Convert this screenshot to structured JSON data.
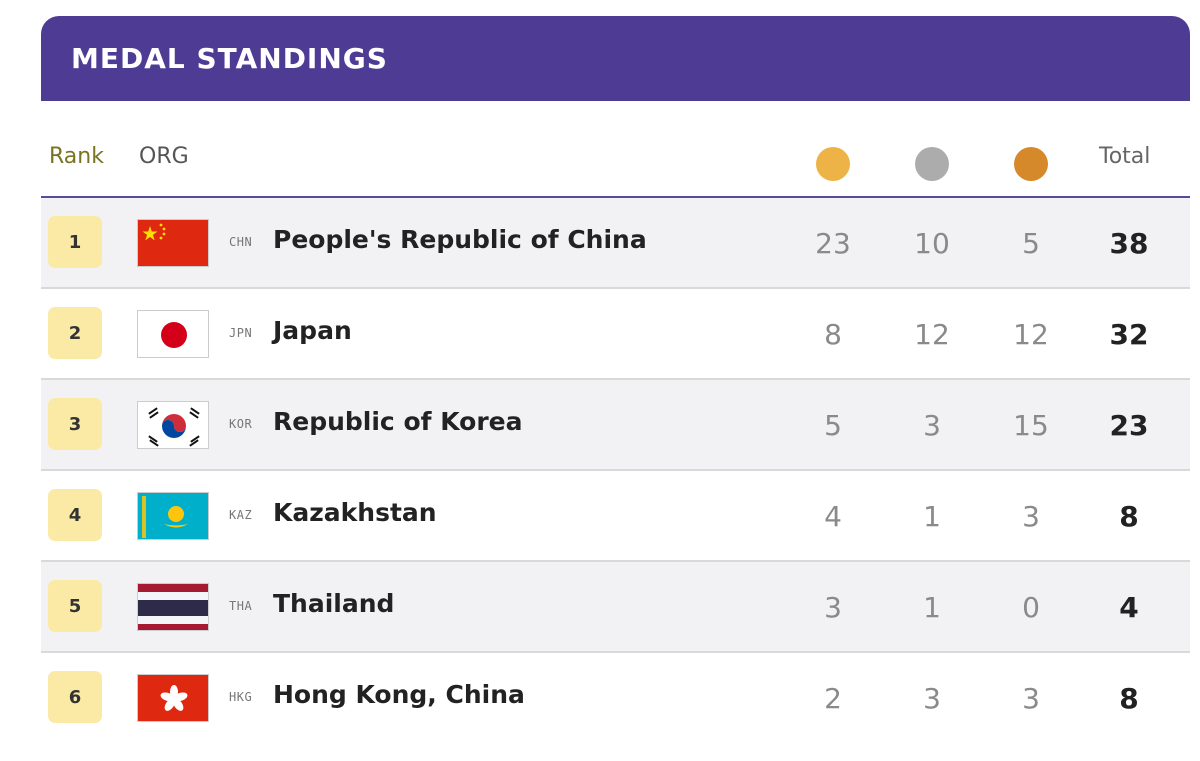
{
  "header": {
    "title": "MEDAL STANDINGS"
  },
  "columns": {
    "rank": "Rank",
    "org": "ORG",
    "total": "Total"
  },
  "medal_colors": {
    "gold": "#eeb347",
    "silver": "#acacac",
    "bronze": "#d5892b"
  },
  "rows": [
    {
      "rank": "1",
      "code": "CHN",
      "name": "People's Republic of China",
      "gold": "23",
      "silver": "10",
      "bronze": "5",
      "total": "38",
      "flag": "china-flag-icon"
    },
    {
      "rank": "2",
      "code": "JPN",
      "name": "Japan",
      "gold": "8",
      "silver": "12",
      "bronze": "12",
      "total": "32",
      "flag": "japan-flag-icon"
    },
    {
      "rank": "3",
      "code": "KOR",
      "name": "Republic of Korea",
      "gold": "5",
      "silver": "3",
      "bronze": "15",
      "total": "23",
      "flag": "korea-flag-icon"
    },
    {
      "rank": "4",
      "code": "KAZ",
      "name": "Kazakhstan",
      "gold": "4",
      "silver": "1",
      "bronze": "3",
      "total": "8",
      "flag": "kazakhstan-flag-icon"
    },
    {
      "rank": "5",
      "code": "THA",
      "name": "Thailand",
      "gold": "3",
      "silver": "1",
      "bronze": "0",
      "total": "4",
      "flag": "thailand-flag-icon"
    },
    {
      "rank": "6",
      "code": "HKG",
      "name": "Hong Kong, China",
      "gold": "2",
      "silver": "3",
      "bronze": "3",
      "total": "8",
      "flag": "hong-kong-flag-icon"
    }
  ]
}
